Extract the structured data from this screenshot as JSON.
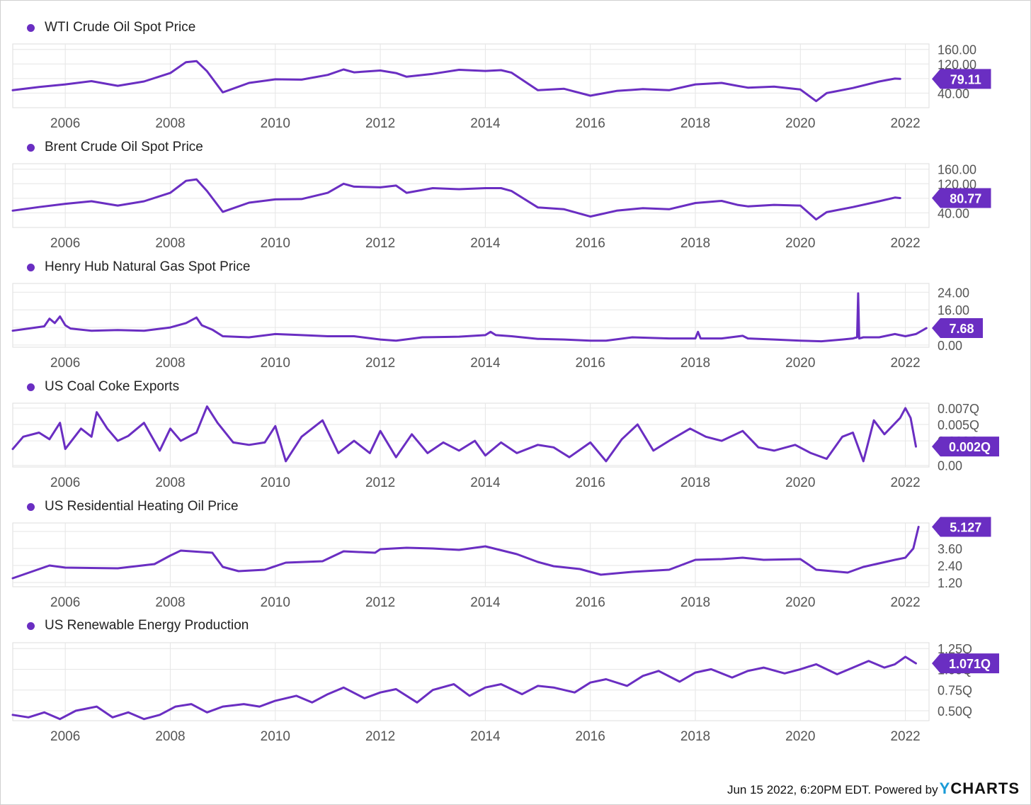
{
  "colors": {
    "series": "#6a2ec2",
    "grid": "#e6e6e6",
    "axis_text": "#555555",
    "brand": "#1a9bd7"
  },
  "footer": {
    "stamp": "Jun 15 2022, 6:20PM EDT. Powered by",
    "brand_y": "Y",
    "brand_rest": "CHARTS"
  },
  "chart_data": [
    {
      "type": "line",
      "title": "WTI Crude Oil Spot Price",
      "x_ticks": [
        "2006",
        "2008",
        "2010",
        "2012",
        "2014",
        "2016",
        "2018",
        "2020",
        "2022"
      ],
      "y_ticks": [
        "160.00",
        "120.00",
        "80.00",
        "40.00"
      ],
      "ylim": [
        0,
        175
      ],
      "last_value_label": "79.11",
      "x": [
        2005.0,
        2005.5,
        2006.0,
        2006.5,
        2007.0,
        2007.5,
        2008.0,
        2008.3,
        2008.5,
        2008.7,
        2009.0,
        2009.5,
        2010.0,
        2010.5,
        2011.0,
        2011.3,
        2011.5,
        2012.0,
        2012.3,
        2012.5,
        2013.0,
        2013.5,
        2014.0,
        2014.3,
        2014.5,
        2015.0,
        2015.5,
        2016.0,
        2016.5,
        2017.0,
        2017.5,
        2018.0,
        2018.5,
        2018.8,
        2019.0,
        2019.5,
        2020.0,
        2020.3,
        2020.5,
        2021.0,
        2021.5,
        2021.8,
        2021.9
      ],
      "values": [
        48,
        57,
        64,
        73,
        60,
        72,
        95,
        125,
        128,
        100,
        42,
        68,
        78,
        77,
        90,
        105,
        97,
        102,
        95,
        85,
        93,
        104,
        101,
        103,
        96,
        48,
        52,
        33,
        46,
        51,
        48,
        64,
        68,
        60,
        55,
        58,
        50,
        18,
        40,
        54,
        72,
        80,
        79.11
      ]
    },
    {
      "type": "line",
      "title": "Brent Crude Oil Spot Price",
      "x_ticks": [
        "2006",
        "2008",
        "2010",
        "2012",
        "2014",
        "2016",
        "2018",
        "2020",
        "2022"
      ],
      "y_ticks": [
        "160.00",
        "120.00",
        "80.00",
        "40.00"
      ],
      "ylim": [
        0,
        175
      ],
      "last_value_label": "80.77",
      "x": [
        2005.0,
        2005.5,
        2006.0,
        2006.5,
        2007.0,
        2007.5,
        2008.0,
        2008.3,
        2008.5,
        2008.7,
        2009.0,
        2009.5,
        2010.0,
        2010.5,
        2011.0,
        2011.3,
        2011.5,
        2012.0,
        2012.3,
        2012.5,
        2013.0,
        2013.5,
        2014.0,
        2014.3,
        2014.5,
        2015.0,
        2015.5,
        2016.0,
        2016.5,
        2017.0,
        2017.5,
        2018.0,
        2018.5,
        2018.8,
        2019.0,
        2019.5,
        2020.0,
        2020.3,
        2020.5,
        2021.0,
        2021.5,
        2021.8,
        2021.9
      ],
      "values": [
        46,
        56,
        65,
        72,
        60,
        72,
        95,
        128,
        132,
        100,
        43,
        68,
        77,
        78,
        95,
        120,
        112,
        110,
        115,
        95,
        108,
        105,
        108,
        108,
        100,
        55,
        50,
        30,
        46,
        53,
        50,
        67,
        73,
        62,
        58,
        62,
        60,
        22,
        42,
        56,
        72,
        82,
        80.77
      ]
    },
    {
      "type": "line",
      "title": "Henry Hub Natural Gas Spot Price",
      "x_ticks": [
        "2006",
        "2008",
        "2010",
        "2012",
        "2014",
        "2016",
        "2018",
        "2020",
        "2022"
      ],
      "y_ticks": [
        "24.00",
        "16.00",
        "8.00",
        "0.00"
      ],
      "ylim": [
        -1,
        28
      ],
      "last_value_label": "7.68",
      "x": [
        2005.0,
        2005.3,
        2005.6,
        2005.7,
        2005.8,
        2005.9,
        2006.0,
        2006.1,
        2006.5,
        2007.0,
        2007.5,
        2008.0,
        2008.3,
        2008.5,
        2008.6,
        2008.8,
        2009.0,
        2009.5,
        2010.0,
        2010.5,
        2011.0,
        2011.5,
        2012.0,
        2012.3,
        2012.8,
        2013.5,
        2014.0,
        2014.1,
        2014.2,
        2014.5,
        2015.0,
        2015.5,
        2016.0,
        2016.3,
        2016.8,
        2017.5,
        2018.0,
        2018.05,
        2018.1,
        2018.5,
        2018.9,
        2019.0,
        2019.5,
        2020.0,
        2020.4,
        2020.8,
        2021.0,
        2021.08,
        2021.1,
        2021.12,
        2021.2,
        2021.5,
        2021.8,
        2022.0,
        2022.2,
        2022.4
      ],
      "values": [
        6.5,
        7.5,
        8.5,
        12,
        10,
        13,
        9,
        7.5,
        6.5,
        6.8,
        6.5,
        8,
        10,
        12.5,
        9,
        7,
        4,
        3.5,
        5,
        4.5,
        4,
        4,
        2.5,
        2,
        3.5,
        3.8,
        4.5,
        6,
        4.5,
        4,
        2.8,
        2.5,
        2,
        2,
        3.5,
        3,
        3,
        6,
        3,
        3,
        4.2,
        3,
        2.5,
        2,
        1.7,
        2.5,
        3,
        3.5,
        23.5,
        3,
        3.5,
        3.5,
        5,
        4,
        5,
        7.68
      ]
    },
    {
      "type": "line",
      "title": "US Coal Coke Exports",
      "x_ticks": [
        "2006",
        "2008",
        "2010",
        "2012",
        "2014",
        "2016",
        "2018",
        "2020",
        "2022"
      ],
      "y_ticks": [
        "0.007Q",
        "0.005Q",
        "0.003Q",
        "0.00"
      ],
      "ylim": [
        -0.0002,
        0.0076
      ],
      "last_value_label": "0.002Q",
      "x": [
        2005.0,
        2005.2,
        2005.5,
        2005.7,
        2005.9,
        2006.0,
        2006.3,
        2006.5,
        2006.6,
        2006.8,
        2007.0,
        2007.2,
        2007.5,
        2007.8,
        2008.0,
        2008.2,
        2008.5,
        2008.7,
        2008.9,
        2009.2,
        2009.5,
        2009.8,
        2010.0,
        2010.2,
        2010.5,
        2010.9,
        2011.2,
        2011.5,
        2011.8,
        2012.0,
        2012.3,
        2012.6,
        2012.9,
        2013.2,
        2013.5,
        2013.8,
        2014.0,
        2014.3,
        2014.6,
        2015.0,
        2015.3,
        2015.6,
        2016.0,
        2016.3,
        2016.6,
        2016.9,
        2017.2,
        2017.5,
        2017.9,
        2018.2,
        2018.5,
        2018.9,
        2019.2,
        2019.5,
        2019.9,
        2020.2,
        2020.5,
        2020.8,
        2021.0,
        2021.2,
        2021.4,
        2021.6,
        2021.9,
        2022.0,
        2022.1,
        2022.2
      ],
      "values": [
        0.002,
        0.0035,
        0.004,
        0.0032,
        0.0052,
        0.002,
        0.0045,
        0.0035,
        0.0065,
        0.0045,
        0.003,
        0.0036,
        0.0052,
        0.0018,
        0.0045,
        0.003,
        0.004,
        0.0072,
        0.0052,
        0.0028,
        0.0025,
        0.0028,
        0.0048,
        0.0005,
        0.0035,
        0.0055,
        0.0015,
        0.003,
        0.0015,
        0.0042,
        0.001,
        0.0038,
        0.0015,
        0.0028,
        0.0018,
        0.003,
        0.0012,
        0.0028,
        0.0015,
        0.0025,
        0.0022,
        0.001,
        0.0028,
        0.0005,
        0.0032,
        0.005,
        0.0018,
        0.003,
        0.0045,
        0.0035,
        0.003,
        0.0042,
        0.0022,
        0.0018,
        0.0025,
        0.0015,
        0.0008,
        0.0035,
        0.004,
        0.0005,
        0.0055,
        0.0038,
        0.0058,
        0.007,
        0.0058,
        0.0023
      ]
    },
    {
      "type": "line",
      "title": "US Residential Heating Oil Price",
      "x_ticks": [
        "2006",
        "2008",
        "2010",
        "2012",
        "2014",
        "2016",
        "2018",
        "2020",
        "2022"
      ],
      "y_ticks": [
        "4.80",
        "3.60",
        "2.40",
        "1.20"
      ],
      "ylim": [
        0.9,
        5.4
      ],
      "last_value_label": "5.127",
      "x": [
        2005.0,
        2005.7,
        2006.0,
        2007.0,
        2007.7,
        2008.0,
        2008.2,
        2008.8,
        2009.0,
        2009.3,
        2009.8,
        2010.2,
        2010.9,
        2011.3,
        2011.9,
        2012.0,
        2012.5,
        2013.0,
        2013.5,
        2014.0,
        2014.6,
        2015.0,
        2015.3,
        2015.8,
        2016.2,
        2016.8,
        2017.5,
        2018.0,
        2018.5,
        2018.9,
        2019.3,
        2020.0,
        2020.3,
        2020.9,
        2021.2,
        2021.8,
        2022.0,
        2022.15,
        2022.25
      ],
      "values": [
        1.5,
        2.4,
        2.25,
        2.2,
        2.5,
        3.1,
        3.45,
        3.3,
        2.3,
        2.0,
        2.1,
        2.6,
        2.7,
        3.4,
        3.3,
        3.55,
        3.65,
        3.6,
        3.5,
        3.75,
        3.2,
        2.65,
        2.35,
        2.15,
        1.75,
        1.95,
        2.1,
        2.8,
        2.85,
        2.95,
        2.8,
        2.85,
        2.1,
        1.9,
        2.3,
        2.8,
        2.95,
        3.6,
        5.127
      ]
    },
    {
      "type": "line",
      "title": "US Renewable Energy Production",
      "x_ticks": [
        "2006",
        "2008",
        "2010",
        "2012",
        "2014",
        "2016",
        "2018",
        "2020",
        "2022"
      ],
      "y_ticks": [
        "1.25Q",
        "1.00Q",
        "0.75Q",
        "0.50Q"
      ],
      "ylim": [
        0.38,
        1.32
      ],
      "last_value_label": "1.071Q",
      "x": [
        2005.0,
        2005.3,
        2005.6,
        2005.9,
        2006.2,
        2006.6,
        2006.9,
        2007.2,
        2007.5,
        2007.8,
        2008.1,
        2008.4,
        2008.7,
        2009.0,
        2009.4,
        2009.7,
        2010.0,
        2010.4,
        2010.7,
        2011.0,
        2011.3,
        2011.7,
        2012.0,
        2012.3,
        2012.7,
        2013.0,
        2013.4,
        2013.7,
        2014.0,
        2014.3,
        2014.7,
        2015.0,
        2015.3,
        2015.7,
        2016.0,
        2016.3,
        2016.7,
        2017.0,
        2017.3,
        2017.7,
        2018.0,
        2018.3,
        2018.7,
        2019.0,
        2019.3,
        2019.7,
        2020.0,
        2020.3,
        2020.7,
        2021.0,
        2021.3,
        2021.6,
        2021.8,
        2022.0,
        2022.2
      ],
      "values": [
        0.45,
        0.42,
        0.48,
        0.4,
        0.5,
        0.55,
        0.42,
        0.48,
        0.4,
        0.45,
        0.55,
        0.58,
        0.48,
        0.55,
        0.58,
        0.55,
        0.62,
        0.68,
        0.6,
        0.7,
        0.78,
        0.65,
        0.72,
        0.76,
        0.6,
        0.75,
        0.82,
        0.68,
        0.78,
        0.82,
        0.7,
        0.8,
        0.78,
        0.72,
        0.84,
        0.88,
        0.8,
        0.92,
        0.98,
        0.85,
        0.96,
        1.0,
        0.9,
        0.98,
        1.02,
        0.95,
        1.0,
        1.06,
        0.94,
        1.02,
        1.1,
        1.02,
        1.06,
        1.15,
        1.071
      ]
    }
  ]
}
